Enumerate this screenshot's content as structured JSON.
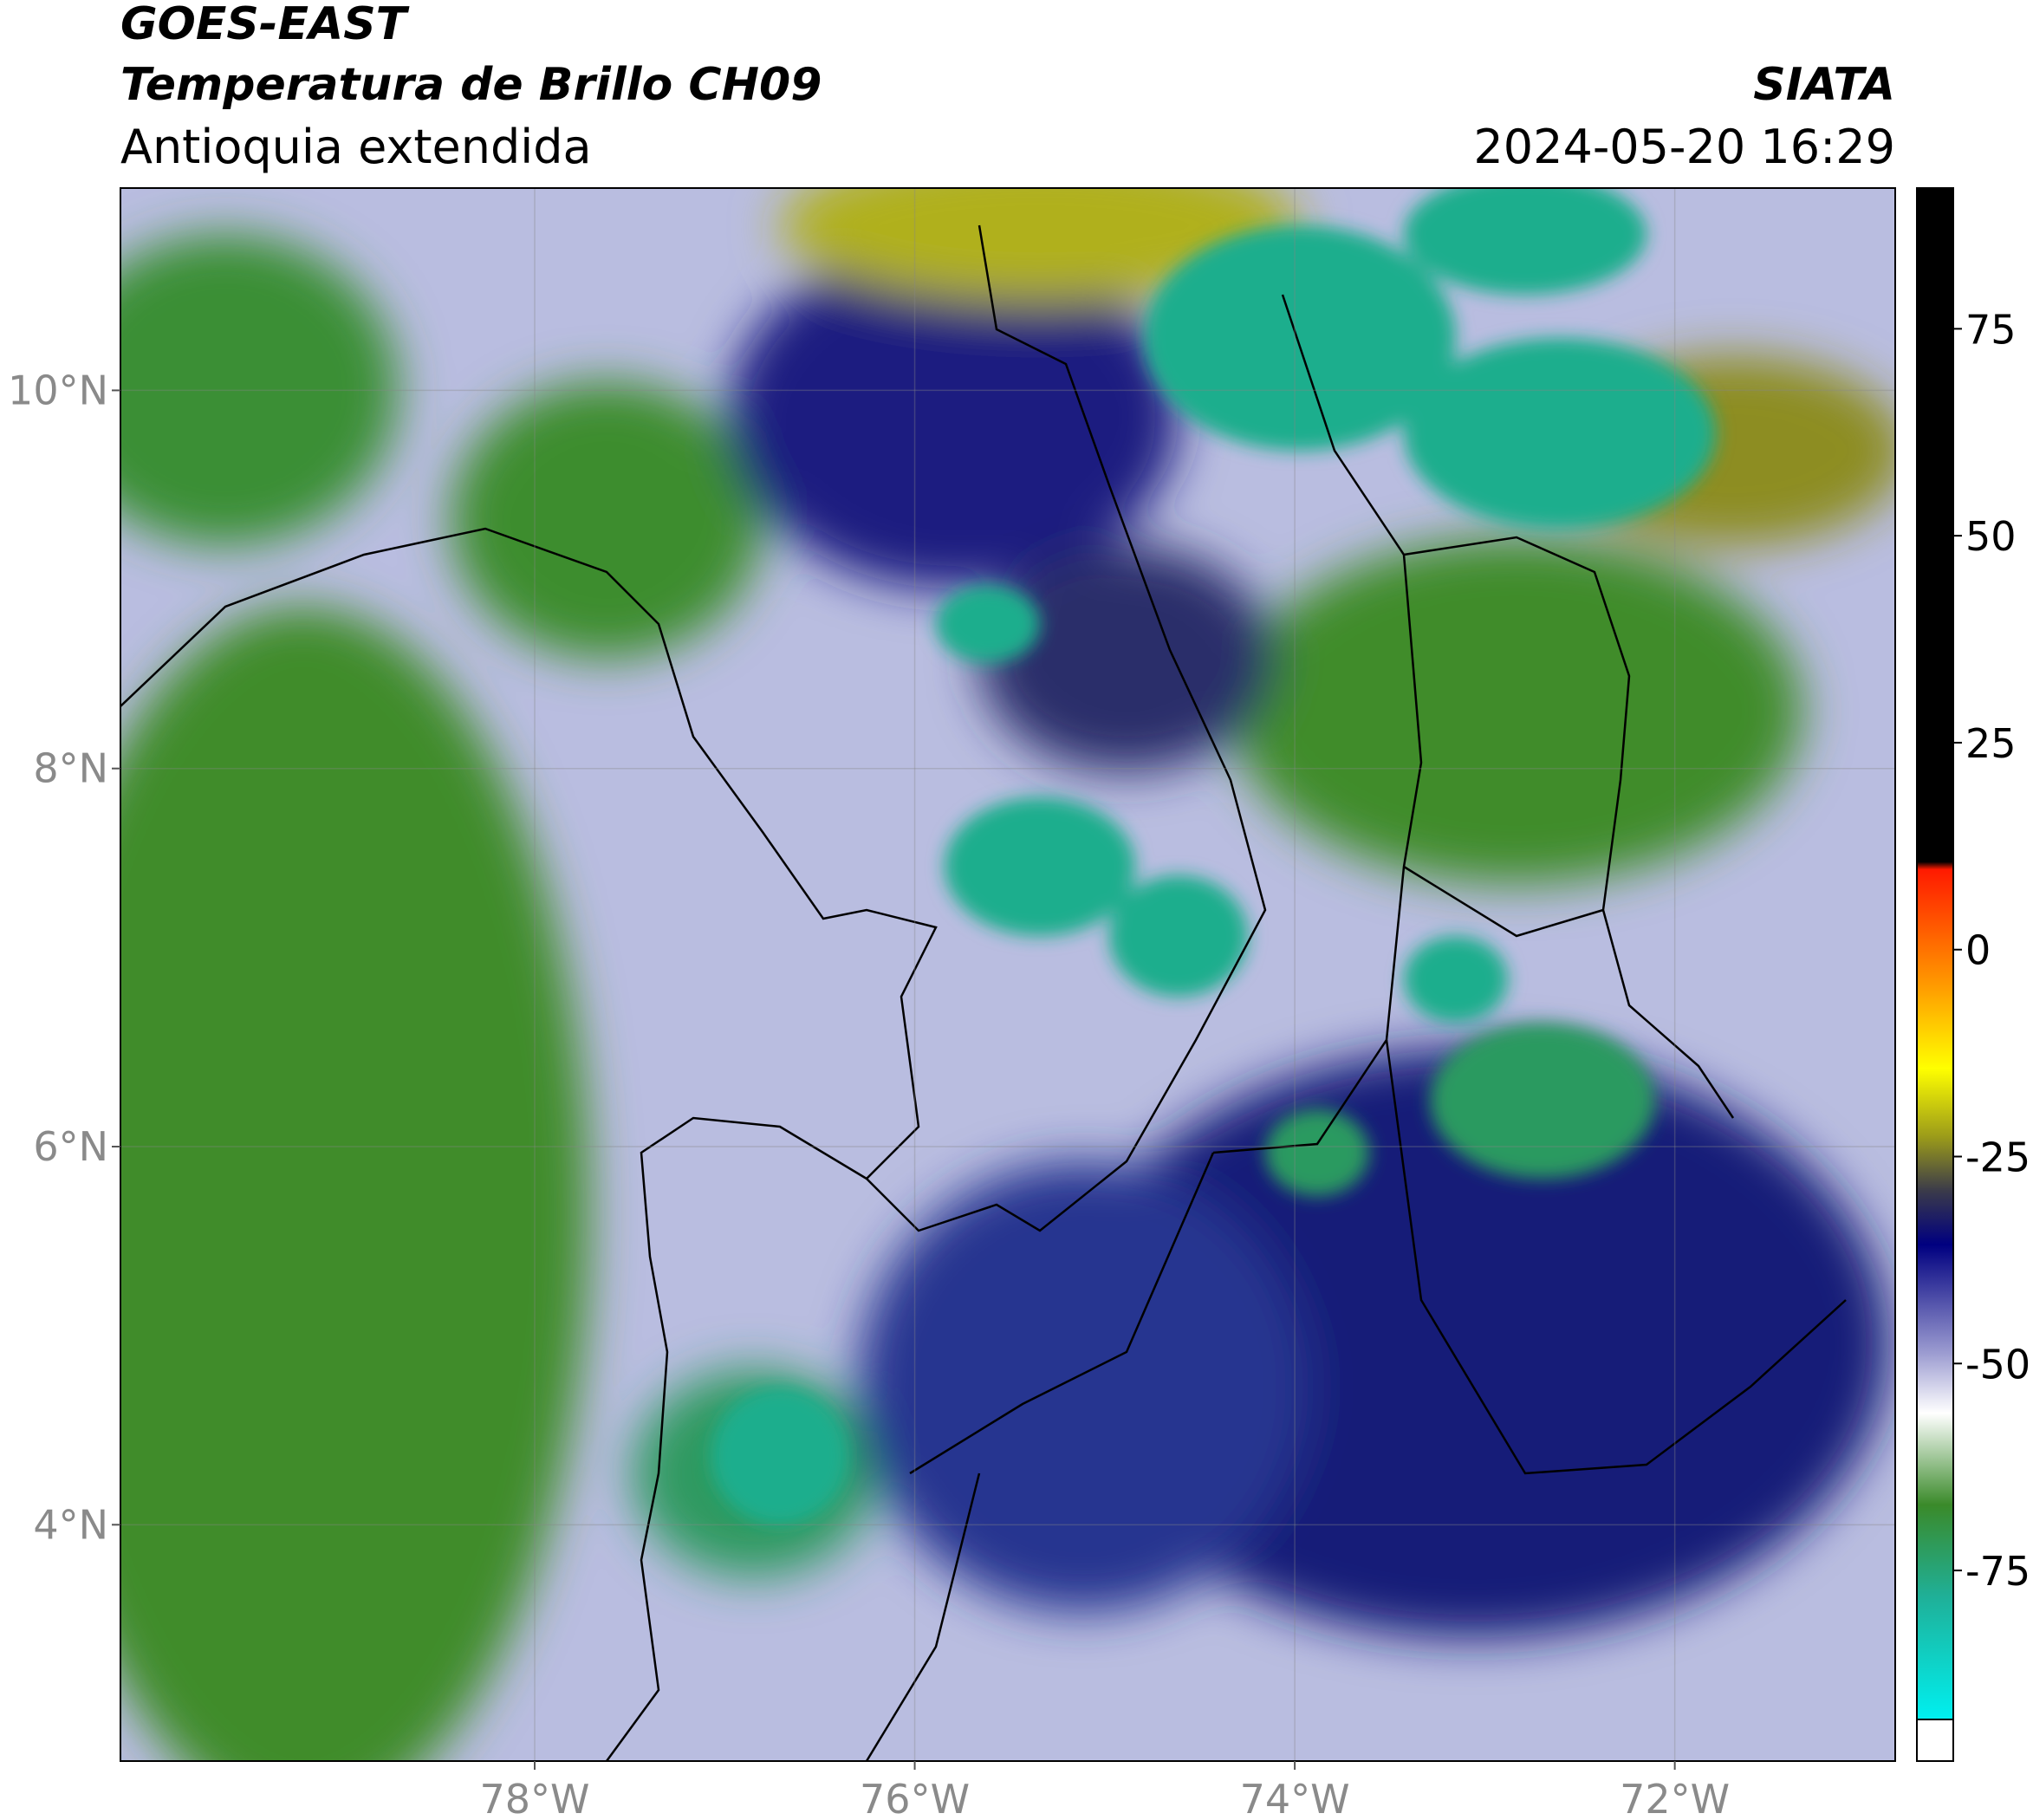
{
  "header": {
    "satellite": "GOES-EAST",
    "product": "Temperatura de Brillo CH09",
    "region": "Antioquia extendida",
    "source": "SIATA",
    "datetime": "2024-05-20 16:29"
  },
  "map": {
    "lon_extent": [
      -80.18,
      -70.84
    ],
    "lat_extent": [
      2.75,
      11.07
    ],
    "lat_ticks": [
      {
        "value": 10,
        "label": "10°N"
      },
      {
        "value": 8,
        "label": "8°N"
      },
      {
        "value": 6,
        "label": "6°N"
      },
      {
        "value": 4,
        "label": "4°N"
      }
    ],
    "lon_ticks": [
      {
        "value": -78,
        "label": "78°W"
      },
      {
        "value": -76,
        "label": "76°W"
      },
      {
        "value": -74,
        "label": "74°W"
      },
      {
        "value": -72,
        "label": "72°W"
      }
    ]
  },
  "colorbar": {
    "range": [
      -93,
      92
    ],
    "ticks": [
      75,
      50,
      25,
      0,
      -25,
      -50,
      -75
    ]
  }
}
